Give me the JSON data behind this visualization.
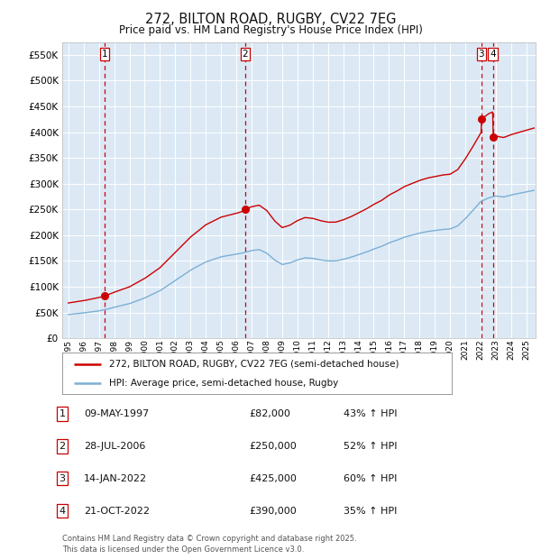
{
  "title": "272, BILTON ROAD, RUGBY, CV22 7EG",
  "subtitle": "Price paid vs. HM Land Registry's House Price Index (HPI)",
  "ylim": [
    0,
    575000
  ],
  "xlim_start": 1994.6,
  "xlim_end": 2025.6,
  "yticks": [
    0,
    50000,
    100000,
    150000,
    200000,
    250000,
    300000,
    350000,
    400000,
    450000,
    500000,
    550000
  ],
  "ytick_labels": [
    "£0",
    "£50K",
    "£100K",
    "£150K",
    "£200K",
    "£250K",
    "£300K",
    "£350K",
    "£400K",
    "£450K",
    "£500K",
    "£550K"
  ],
  "background_color": "#dce9f5",
  "grid_color": "#ffffff",
  "hpi_line_color": "#7bafd4",
  "price_line_color": "#cc0000",
  "vline_color": "#cc0000",
  "sale_marker_color": "#cc0000",
  "transactions": [
    {
      "date_year": 1997.36,
      "price": 82000,
      "label": "1",
      "date_str": "09-MAY-1997",
      "pct": "43%"
    },
    {
      "date_year": 2006.57,
      "price": 250000,
      "label": "2",
      "date_str": "28-JUL-2006",
      "pct": "52%"
    },
    {
      "date_year": 2022.04,
      "price": 425000,
      "label": "3",
      "date_str": "14-JAN-2022",
      "pct": "60%"
    },
    {
      "date_year": 2022.8,
      "price": 390000,
      "label": "4",
      "date_str": "21-OCT-2022",
      "pct": "35%"
    }
  ],
  "legend_label_price": "272, BILTON ROAD, RUGBY, CV22 7EG (semi-detached house)",
  "legend_label_hpi": "HPI: Average price, semi-detached house, Rugby",
  "footer": "Contains HM Land Registry data © Crown copyright and database right 2025.\nThis data is licensed under the Open Government Licence v3.0.",
  "table_rows": [
    {
      "num": "1",
      "date": "09-MAY-1997",
      "price": "£82,000",
      "pct": "43% ↑ HPI"
    },
    {
      "num": "2",
      "date": "28-JUL-2006",
      "price": "£250,000",
      "pct": "52% ↑ HPI"
    },
    {
      "num": "3",
      "date": "14-JAN-2022",
      "price": "£425,000",
      "pct": "60% ↑ HPI"
    },
    {
      "num": "4",
      "date": "21-OCT-2022",
      "price": "£390,000",
      "pct": "35% ↑ HPI"
    }
  ],
  "hpi_pts_x": [
    1995.0,
    1996.0,
    1997.0,
    1997.5,
    1998.0,
    1999.0,
    2000.0,
    2001.0,
    2002.0,
    2003.0,
    2004.0,
    2005.0,
    2006.0,
    2006.5,
    2007.0,
    2007.5,
    2008.0,
    2008.5,
    2009.0,
    2009.5,
    2010.0,
    2010.5,
    2011.0,
    2011.5,
    2012.0,
    2012.5,
    2013.0,
    2013.5,
    2014.0,
    2014.5,
    2015.0,
    2015.5,
    2016.0,
    2016.5,
    2017.0,
    2017.5,
    2018.0,
    2018.5,
    2019.0,
    2019.5,
    2020.0,
    2020.5,
    2021.0,
    2021.5,
    2022.0,
    2022.5,
    2023.0,
    2023.5,
    2024.0,
    2024.5,
    2025.0,
    2025.5
  ],
  "hpi_pts_y": [
    46000,
    49000,
    53000,
    56000,
    60000,
    67000,
    78000,
    92000,
    112000,
    132000,
    148000,
    158000,
    163000,
    166000,
    170000,
    172000,
    165000,
    152000,
    143000,
    146000,
    152000,
    156000,
    155000,
    152000,
    150000,
    150000,
    153000,
    157000,
    162000,
    167000,
    173000,
    178000,
    185000,
    190000,
    196000,
    200000,
    204000,
    207000,
    209000,
    211000,
    212000,
    218000,
    232000,
    248000,
    265000,
    272000,
    276000,
    274000,
    278000,
    281000,
    284000,
    287000
  ]
}
